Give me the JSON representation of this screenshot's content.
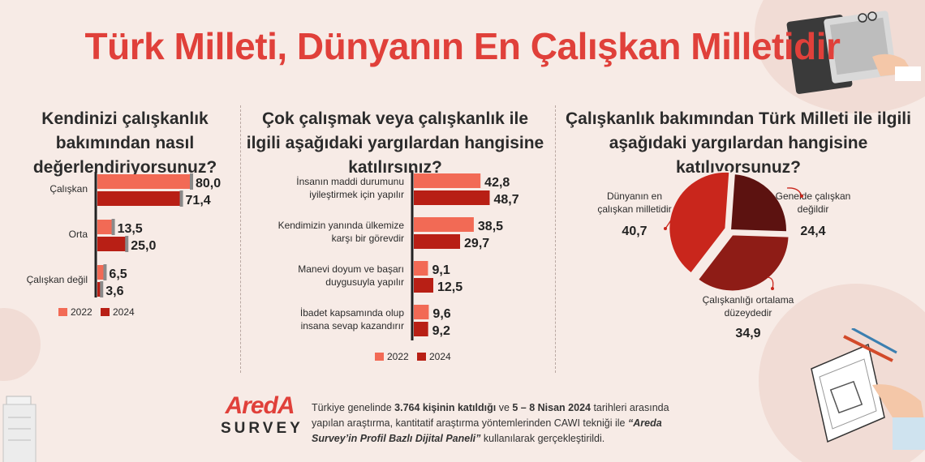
{
  "page": {
    "title": "Türk Milleti, Dünyanın En Çalışkan Milletidir",
    "colors": {
      "y2022": "#f26a55",
      "y2024": "#b81f15",
      "accent": "#e0403a"
    }
  },
  "chart_data": [
    {
      "type": "bar",
      "orientation": "horizontal",
      "title": "Kendinizi çalışkanlık bakımından nasıl değerlendiriyorsunuz?",
      "categories": [
        "Çalışkan",
        "Orta",
        "Çalışkan değil"
      ],
      "series": [
        {
          "name": "2022",
          "values": [
            80.0,
            13.5,
            6.5
          ],
          "labels": [
            "80,0",
            "13,5",
            "6,5"
          ]
        },
        {
          "name": "2024",
          "values": [
            71.4,
            25.0,
            3.6
          ],
          "labels": [
            "71,4",
            "25,0",
            "3,6"
          ]
        }
      ],
      "xlim": [
        0,
        100
      ],
      "legend": "bottom"
    },
    {
      "type": "bar",
      "orientation": "horizontal",
      "title": "Çok çalışmak veya çalışkanlık ile ilgili aşağıdaki yargılardan hangisine katılırsınız?",
      "categories": [
        [
          "İnsanın maddi durumunu",
          "iyileştirmek için yapılır"
        ],
        [
          "Kendimizin yanında ülkemize",
          "karşı bir görevdir"
        ],
        [
          "Manevi doyum ve başarı",
          "duygusuyla yapılır"
        ],
        [
          "İbadet kapsamında olup",
          "insana sevap kazandırır"
        ]
      ],
      "series": [
        {
          "name": "2022",
          "values": [
            42.8,
            38.5,
            9.1,
            9.6
          ],
          "labels": [
            "42,8",
            "38,5",
            "9,1",
            "9,6"
          ]
        },
        {
          "name": "2024",
          "values": [
            48.7,
            29.7,
            12.5,
            9.2
          ],
          "labels": [
            "48,7",
            "29,7",
            "12,5",
            "9,2"
          ]
        }
      ],
      "xlim": [
        0,
        100
      ],
      "legend": "bottom"
    },
    {
      "type": "pie",
      "title": "Çalışkanlık bakımından Türk Milleti ile ilgili aşağıdaki yargılardan hangisine katılıyorsunuz?",
      "slices": [
        {
          "label": [
            "Genelde çalışkan",
            "değildir"
          ],
          "value": 24.4,
          "value_label": "24,4",
          "color": "#5c1210"
        },
        {
          "label": [
            "Çalışkanlığı ortalama",
            "düzeydedir"
          ],
          "value": 34.9,
          "value_label": "34,9",
          "color": "#8e1c16"
        },
        {
          "label": [
            "Dünyanın en",
            "çalışkan milletidir"
          ],
          "value": 40.7,
          "value_label": "40,7",
          "color": "#c9261c"
        }
      ]
    }
  ],
  "footer": {
    "logo_top": "AredA",
    "logo_bottom": "SURVEY",
    "t1": "Türkiye genelinde ",
    "b1": "3.764 kişinin katıldığı",
    "t2": " ve ",
    "b2": "5 – 8 Nisan 2024",
    "t3": " tarihleri arasında yapılan araştırma, kantitatif araştırma yöntemlerinden CAWI tekniği ile ",
    "i1": "“Areda Survey’in Profil Bazlı Dijital Paneli”",
    "t4": " kullanılarak gerçekleştirildi."
  }
}
